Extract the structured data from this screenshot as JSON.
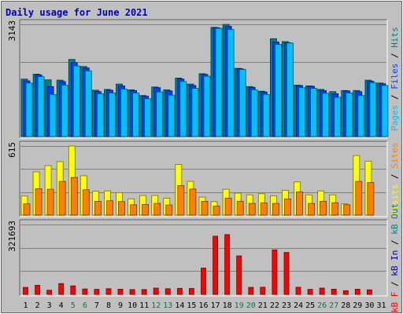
{
  "colors": {
    "page_bg": "#c0c0c0",
    "plot_bg": "#c0c0c0",
    "grid": "#808080",
    "title": "#0000c0",
    "pages": "#00c0ff",
    "files": "#0040ff",
    "hits": "#008080",
    "visits": "#ffff00",
    "sites": "#ff8000",
    "kb_out": "#008080",
    "kb_in": "#0000c0",
    "kb_f": "#ff0000",
    "weekend": "#008040",
    "weekday": "#000080"
  },
  "chart_data": {
    "type": "bar",
    "title": "Daily usage for June 2021",
    "x": [
      "1",
      "2",
      "3",
      "4",
      "5",
      "6",
      "7",
      "8",
      "9",
      "10",
      "11",
      "12",
      "13",
      "14",
      "15",
      "16",
      "17",
      "18",
      "19",
      "20",
      "21",
      "22",
      "23",
      "24",
      "25",
      "26",
      "27",
      "28",
      "29",
      "30",
      "31"
    ],
    "weekend_days": [
      "5",
      "6",
      "12",
      "13",
      "19",
      "20",
      "26",
      "27"
    ],
    "panels": [
      {
        "name": "pages-files-hits",
        "ymax_label": "3143",
        "ymax": 3143,
        "legend": [
          {
            "text": "Pages",
            "color": "#00c0ff"
          },
          {
            "text": " / ",
            "color": "#000000"
          },
          {
            "text": "Files",
            "color": "#0040ff"
          },
          {
            "text": " / ",
            "color": "#000000"
          },
          {
            "text": "Hits",
            "color": "#008080"
          }
        ],
        "series": [
          {
            "name": "Hits",
            "color": "#008080",
            "values": [
              1610,
              1750,
              1590,
              1580,
              2160,
              1960,
              1300,
              1320,
              1470,
              1310,
              1150,
              1390,
              1310,
              1640,
              1470,
              1760,
              3060,
              3140,
              1910,
              1400,
              1270,
              2740,
              2660,
              1440,
              1420,
              1320,
              1260,
              1290,
              1290,
              1580,
              1500
            ]
          },
          {
            "name": "Files",
            "color": "#0040ff",
            "values": [
              1560,
              1730,
              1400,
              1540,
              2070,
              1920,
              1260,
              1300,
              1420,
              1290,
              1130,
              1370,
              1280,
              1610,
              1430,
              1740,
              3050,
              3090,
              1900,
              1380,
              1250,
              2650,
              2630,
              1430,
              1410,
              1290,
              1200,
              1280,
              1260,
              1550,
              1480
            ]
          },
          {
            "name": "Pages",
            "color": "#00c0ff",
            "values": [
              1500,
              1680,
              1180,
              1440,
              1980,
              1840,
              1200,
              1220,
              1330,
              1220,
              1060,
              1250,
              1160,
              1540,
              1350,
              1690,
              3030,
              3000,
              1880,
              1310,
              1180,
              2580,
              2620,
              1370,
              1350,
              1210,
              1100,
              1220,
              1150,
              1510,
              1430
            ]
          }
        ]
      },
      {
        "name": "visits-sites",
        "ymax_label": "615",
        "ymax": 615,
        "legend": [
          {
            "text": "Visits",
            "color": "#ffff00"
          },
          {
            "text": " / ",
            "color": "#000000"
          },
          {
            "text": "Sites",
            "color": "#ff8000"
          }
        ],
        "series": [
          {
            "name": "Visits",
            "color": "#ffff00",
            "values": [
              170,
              385,
              440,
              475,
              615,
              350,
              212,
              215,
              200,
              145,
              174,
              175,
              150,
              450,
              300,
              160,
              120,
              230,
              196,
              180,
              190,
              171,
              220,
              295,
              180,
              215,
              180,
              100,
              530,
              480,
              0
            ]
          },
          {
            "name": "Sites",
            "color": "#ff8000",
            "values": [
              100,
              235,
              230,
              300,
              335,
              225,
              122,
              128,
              120,
              92,
              94,
              104,
              90,
              262,
              232,
              122,
              80,
              150,
              124,
              104,
              108,
              104,
              144,
              206,
              104,
              124,
              110,
              92,
              300,
              290,
              0
            ]
          }
        ]
      },
      {
        "name": "kbf-kbin-kbout",
        "ymax_label": "321693",
        "ymax": 321693,
        "legend": [
          {
            "text": "kB F",
            "color": "#ff0000"
          },
          {
            "text": " / ",
            "color": "#000000"
          },
          {
            "text": "kB In",
            "color": "#0000c0"
          },
          {
            "text": " / ",
            "color": "#000000"
          },
          {
            "text": "kB Out",
            "color": "#008080"
          }
        ],
        "series": [
          {
            "name": "kB F",
            "color": "#ff0000",
            "values": [
              32000,
              42000,
              19000,
              50000,
              39000,
              25000,
              23000,
              26000,
              24000,
              22000,
              22000,
              29000,
              26000,
              28000,
              27000,
              121000,
              268000,
              275000,
              177000,
              32000,
              33000,
              205000,
              193000,
              33000,
              23000,
              29000,
              24000,
              17000,
              24000,
              21000,
              0
            ]
          }
        ]
      }
    ]
  }
}
